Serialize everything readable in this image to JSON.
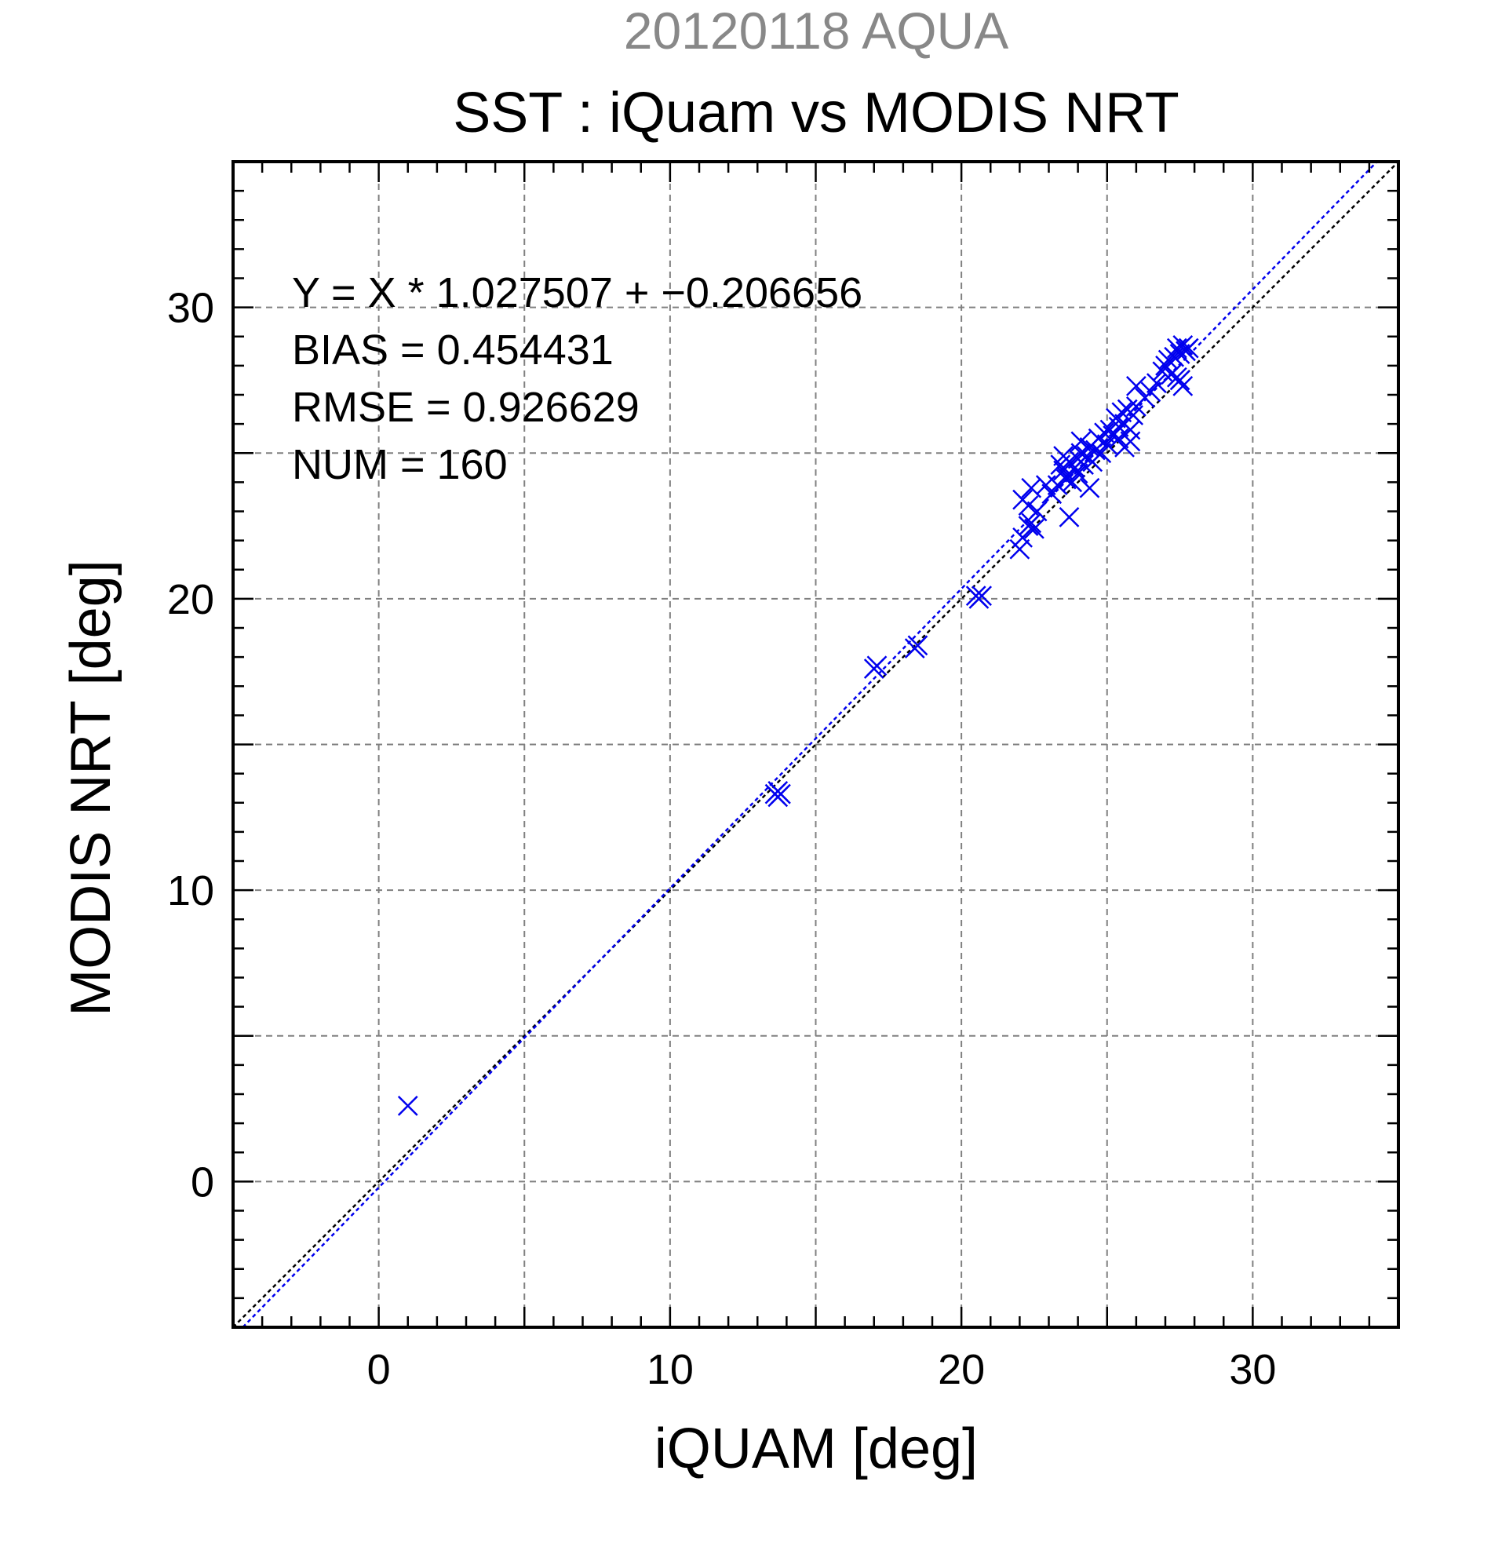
{
  "chart_data": {
    "type": "scatter",
    "supertitle": "20120118 AQUA",
    "title": "SST : iQuam vs MODIS NRT",
    "xlabel": "iQUAM [deg]",
    "ylabel": "MODIS NRT [deg]",
    "xlim": [
      -5,
      35
    ],
    "ylim": [
      -5,
      35
    ],
    "xticks": [
      0,
      10,
      20,
      30
    ],
    "yticks": [
      0,
      10,
      20,
      30
    ],
    "grid_step": 5,
    "minor_tick_step": 1,
    "grid": true,
    "annotations": [
      "Y = X * 1.027507 + −0.206656",
      "BIAS = 0.454431",
      "RMSE = 0.926629",
      "NUM = 160"
    ],
    "colors": {
      "points": "#0000ee",
      "fit_line": "#0000ee",
      "identity_line": "#000000",
      "supertitle": "#888888"
    },
    "marker": "x",
    "fit_line": {
      "slope": 1.027507,
      "intercept": -0.206656
    },
    "identity_line": {
      "slope": 1,
      "intercept": 0
    },
    "points": [
      {
        "x": 1.0,
        "y": 2.6
      },
      {
        "x": 13.6,
        "y": 13.3
      },
      {
        "x": 13.7,
        "y": 13.4
      },
      {
        "x": 13.8,
        "y": 13.3
      },
      {
        "x": 13.7,
        "y": 13.2
      },
      {
        "x": 17.0,
        "y": 17.6
      },
      {
        "x": 17.1,
        "y": 17.7
      },
      {
        "x": 18.4,
        "y": 18.3
      },
      {
        "x": 18.5,
        "y": 18.4
      },
      {
        "x": 20.5,
        "y": 20.1
      },
      {
        "x": 20.6,
        "y": 20.0
      },
      {
        "x": 20.7,
        "y": 20.1
      },
      {
        "x": 22.0,
        "y": 21.7
      },
      {
        "x": 22.1,
        "y": 22.1
      },
      {
        "x": 22.1,
        "y": 23.4
      },
      {
        "x": 22.3,
        "y": 22.5
      },
      {
        "x": 22.4,
        "y": 22.6
      },
      {
        "x": 22.5,
        "y": 22.4
      },
      {
        "x": 22.3,
        "y": 23.2
      },
      {
        "x": 22.6,
        "y": 23.0
      },
      {
        "x": 22.4,
        "y": 23.8
      },
      {
        "x": 22.9,
        "y": 23.9
      },
      {
        "x": 23.1,
        "y": 23.6
      },
      {
        "x": 23.3,
        "y": 23.9
      },
      {
        "x": 23.4,
        "y": 24.6
      },
      {
        "x": 23.5,
        "y": 24.4
      },
      {
        "x": 23.6,
        "y": 24.2
      },
      {
        "x": 23.7,
        "y": 24.7
      },
      {
        "x": 23.8,
        "y": 24.0
      },
      {
        "x": 23.9,
        "y": 24.5
      },
      {
        "x": 23.5,
        "y": 24.9
      },
      {
        "x": 23.6,
        "y": 24.1
      },
      {
        "x": 23.7,
        "y": 22.8
      },
      {
        "x": 24.0,
        "y": 24.3
      },
      {
        "x": 24.0,
        "y": 24.8
      },
      {
        "x": 24.1,
        "y": 25.0
      },
      {
        "x": 24.2,
        "y": 24.6
      },
      {
        "x": 24.3,
        "y": 24.9
      },
      {
        "x": 24.4,
        "y": 25.2
      },
      {
        "x": 24.5,
        "y": 24.7
      },
      {
        "x": 24.4,
        "y": 23.8
      },
      {
        "x": 24.1,
        "y": 25.4
      },
      {
        "x": 24.6,
        "y": 25.1
      },
      {
        "x": 24.7,
        "y": 25.5
      },
      {
        "x": 24.8,
        "y": 25.0
      },
      {
        "x": 24.9,
        "y": 25.7
      },
      {
        "x": 25.0,
        "y": 25.3
      },
      {
        "x": 25.1,
        "y": 25.8
      },
      {
        "x": 25.2,
        "y": 25.6
      },
      {
        "x": 25.3,
        "y": 26.2
      },
      {
        "x": 25.4,
        "y": 25.9
      },
      {
        "x": 25.5,
        "y": 26.4
      },
      {
        "x": 25.4,
        "y": 25.5
      },
      {
        "x": 25.6,
        "y": 25.2
      },
      {
        "x": 25.6,
        "y": 26.0
      },
      {
        "x": 25.7,
        "y": 26.5
      },
      {
        "x": 25.8,
        "y": 25.8
      },
      {
        "x": 25.9,
        "y": 26.3
      },
      {
        "x": 26.0,
        "y": 26.6
      },
      {
        "x": 25.8,
        "y": 25.4
      },
      {
        "x": 26.0,
        "y": 27.3
      },
      {
        "x": 26.3,
        "y": 26.9
      },
      {
        "x": 26.5,
        "y": 27.1
      },
      {
        "x": 26.7,
        "y": 27.4
      },
      {
        "x": 26.9,
        "y": 27.8
      },
      {
        "x": 27.0,
        "y": 28.0
      },
      {
        "x": 27.1,
        "y": 28.2
      },
      {
        "x": 27.2,
        "y": 27.7
      },
      {
        "x": 27.3,
        "y": 28.3
      },
      {
        "x": 27.4,
        "y": 28.6
      },
      {
        "x": 27.5,
        "y": 28.4
      },
      {
        "x": 27.6,
        "y": 28.7
      },
      {
        "x": 27.7,
        "y": 28.5
      },
      {
        "x": 27.5,
        "y": 27.5
      },
      {
        "x": 27.6,
        "y": 27.3
      },
      {
        "x": 27.4,
        "y": 27.6
      },
      {
        "x": 27.8,
        "y": 28.6
      }
    ]
  }
}
